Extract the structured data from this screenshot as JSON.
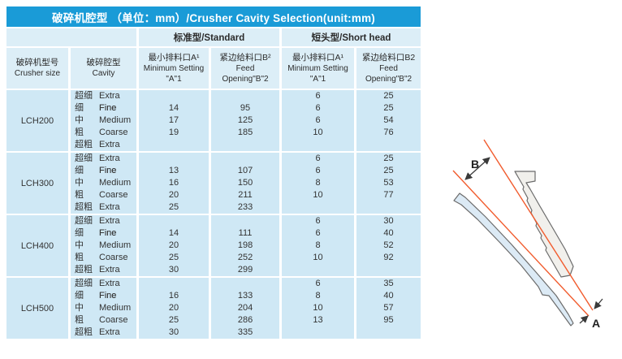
{
  "title": "破碎机腔型 （单位：mm）/Crusher Cavity Selection(unit:mm)",
  "table": {
    "group_headers": {
      "left_blank": "",
      "standard": "标准型/Standard",
      "short_head": "短头型/Short head"
    },
    "columns": {
      "crusher_size": {
        "zh": "破碎机型号",
        "en": "Crusher size"
      },
      "cavity": {
        "zh": "破碎腔型",
        "en": "Cavity"
      },
      "std_min_setting": {
        "zh": "最小排料口A¹",
        "en1": "Minimum Setting",
        "en2": "\"A\"1"
      },
      "std_feed_opening": {
        "zh": "紧边给料口B²",
        "en1": "Feed",
        "en2": "Opening\"B\"2"
      },
      "sh_min_setting": {
        "zh": "最小排料口A¹",
        "en1": "Minimum Setting",
        "en2": "\"A\"1"
      },
      "sh_feed_opening": {
        "zh": "紧边给料口B2",
        "en1": "Feed",
        "en2": "Opening\"B\"2"
      }
    },
    "groups": [
      {
        "model": "LCH200",
        "rows": [
          {
            "zh": "超细",
            "en": "Extra Fine",
            "std_a": "",
            "std_b": "",
            "sh_a": "6",
            "sh_b": "25"
          },
          {
            "zh": "细",
            "en": "Fine",
            "std_a": "14",
            "std_b": "95",
            "sh_a": "6",
            "sh_b": "25"
          },
          {
            "zh": "中",
            "en": "Medium",
            "std_a": "17",
            "std_b": "125",
            "sh_a": "6",
            "sh_b": "54"
          },
          {
            "zh": "粗",
            "en": "Coarse",
            "std_a": "19",
            "std_b": "185",
            "sh_a": "10",
            "sh_b": "76"
          },
          {
            "zh": "超粗",
            "en": "Extra Coarse",
            "std_a": "",
            "std_b": "",
            "sh_a": "",
            "sh_b": ""
          }
        ]
      },
      {
        "model": "LCH300",
        "rows": [
          {
            "zh": "超细",
            "en": "Extra Fine",
            "std_a": "",
            "std_b": "",
            "sh_a": "6",
            "sh_b": "25"
          },
          {
            "zh": "细",
            "en": "Fine",
            "std_a": "13",
            "std_b": "107",
            "sh_a": "6",
            "sh_b": "25"
          },
          {
            "zh": "中",
            "en": "Medium",
            "std_a": "16",
            "std_b": "150",
            "sh_a": "8",
            "sh_b": "53"
          },
          {
            "zh": "粗",
            "en": "Coarse",
            "std_a": "20",
            "std_b": "211",
            "sh_a": "10",
            "sh_b": "77"
          },
          {
            "zh": "超粗",
            "en": "Extra Coarse",
            "std_a": "25",
            "std_b": "233",
            "sh_a": "",
            "sh_b": ""
          }
        ]
      },
      {
        "model": "LCH400",
        "rows": [
          {
            "zh": "超细",
            "en": "Extra Fine",
            "std_a": "",
            "std_b": "",
            "sh_a": "6",
            "sh_b": "30"
          },
          {
            "zh": "细",
            "en": "Fine",
            "std_a": "14",
            "std_b": "111",
            "sh_a": "6",
            "sh_b": "40"
          },
          {
            "zh": "中",
            "en": "Medium",
            "std_a": "20",
            "std_b": "198",
            "sh_a": "8",
            "sh_b": "52"
          },
          {
            "zh": "粗",
            "en": "Coarse",
            "std_a": "25",
            "std_b": "252",
            "sh_a": "10",
            "sh_b": "92"
          },
          {
            "zh": "超粗",
            "en": "Extra Coarse",
            "std_a": "30",
            "std_b": "299",
            "sh_a": "",
            "sh_b": ""
          }
        ]
      },
      {
        "model": "LCH500",
        "rows": [
          {
            "zh": "超细",
            "en": "Extra Fine",
            "std_a": "",
            "std_b": "",
            "sh_a": "6",
            "sh_b": "35"
          },
          {
            "zh": "细",
            "en": "Fine",
            "std_a": "16",
            "std_b": "133",
            "sh_a": "8",
            "sh_b": "40"
          },
          {
            "zh": "中",
            "en": "Medium",
            "std_a": "20",
            "std_b": "204",
            "sh_a": "10",
            "sh_b": "57"
          },
          {
            "zh": "粗",
            "en": "Coarse",
            "std_a": "25",
            "std_b": "286",
            "sh_a": "13",
            "sh_b": "95"
          },
          {
            "zh": "超粗",
            "en": "Extra Coarse",
            "std_a": "30",
            "std_b": "335",
            "sh_a": "",
            "sh_b": ""
          }
        ]
      }
    ]
  },
  "diagram": {
    "label_a": "A",
    "label_b": "B",
    "line_color": "#f15b2d",
    "mantle_fill": "#dceaf5",
    "concave_fill": "#f1f0ec",
    "outline_color": "#6b6b6b"
  },
  "colors": {
    "title_bar": "#1a9bd7",
    "header_cell": "#dceef7",
    "data_cell": "#cfe8f5"
  }
}
